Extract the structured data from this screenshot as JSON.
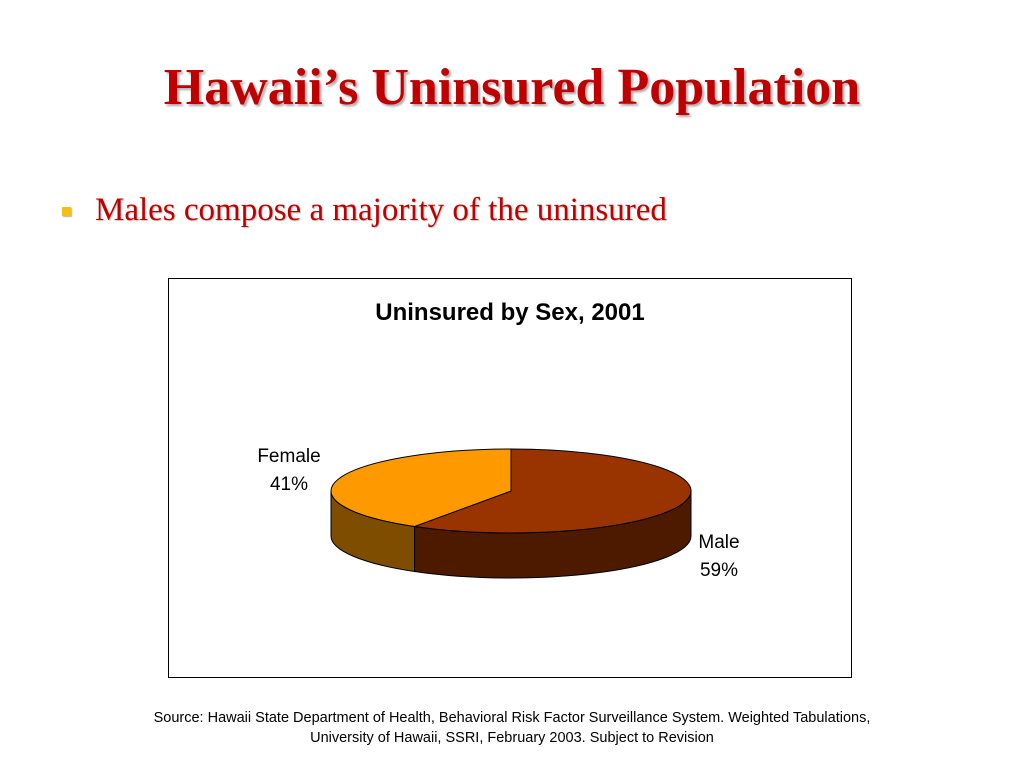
{
  "slide": {
    "title": "Hawaii’s Uninsured Population",
    "bullet": "Males compose a majority of the uninsured",
    "source_line1": "Source: Hawaii State Department of Health, Behavioral Risk Factor Surveillance System.  Weighted Tabulations,",
    "source_line2": "University of Hawaii, SSRI, February 2003.  Subject to Revision"
  },
  "chart_data": {
    "type": "pie",
    "title": "Uninsured by Sex, 2001",
    "three_d": true,
    "categories": [
      "Male",
      "Female"
    ],
    "values": [
      59,
      41
    ],
    "value_labels": [
      "59%",
      "41%"
    ],
    "colors": {
      "Male": {
        "top": "#993300",
        "side": "#4d1a00"
      },
      "Female": {
        "top": "#ff9900",
        "side": "#7f4d00"
      }
    },
    "legend": "none"
  }
}
